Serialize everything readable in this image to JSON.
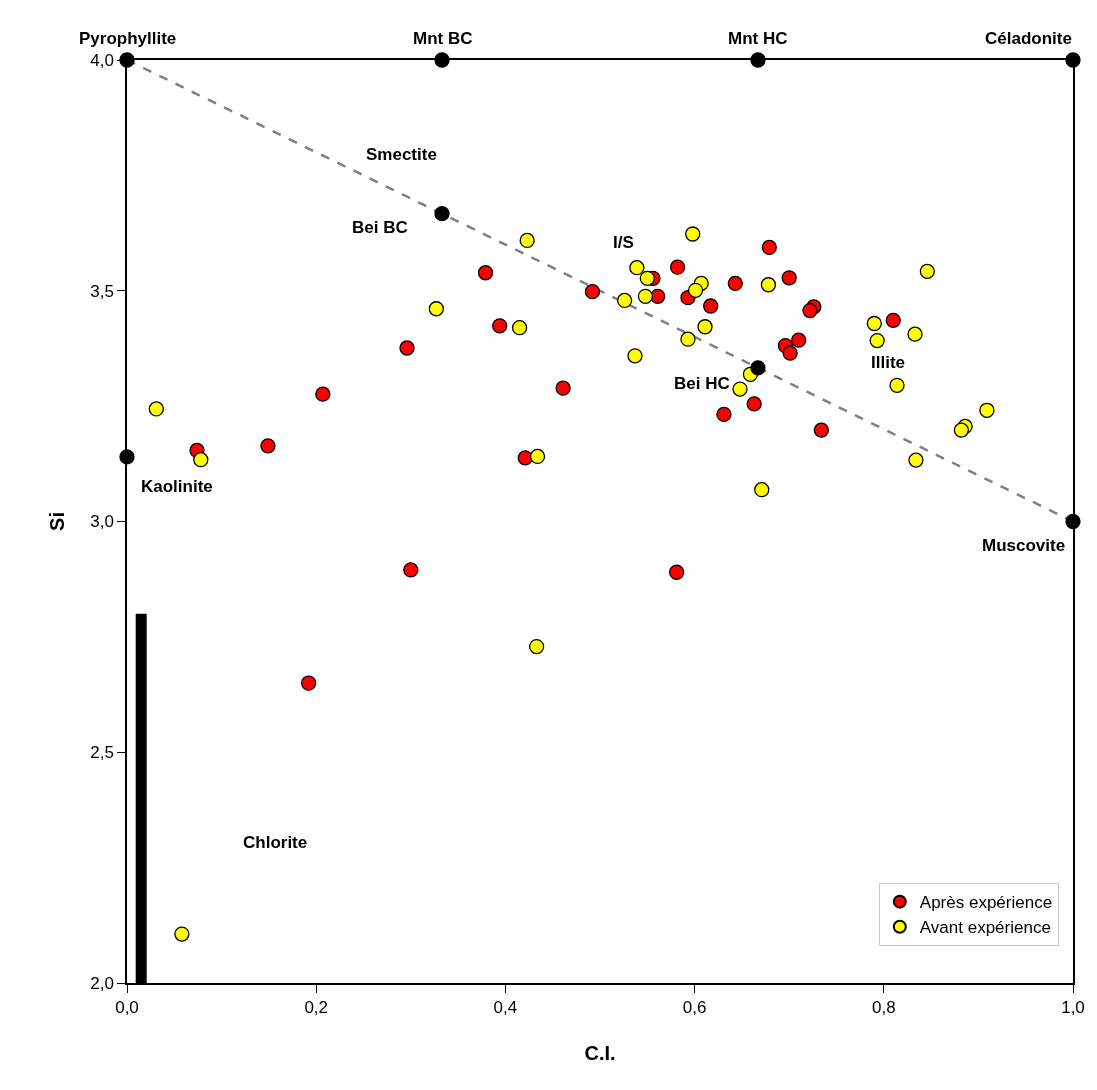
{
  "chart_data": {
    "type": "scatter",
    "xlabel": "C.I.",
    "ylabel": "Si",
    "xlim": [
      0,
      1
    ],
    "ylim": [
      2,
      4
    ],
    "xticks": [
      {
        "value": 0,
        "label": "0,0"
      },
      {
        "value": 0.2,
        "label": "0,2"
      },
      {
        "value": 0.4,
        "label": "0,4"
      },
      {
        "value": 0.6,
        "label": "0,6"
      },
      {
        "value": 0.8,
        "label": "0,8"
      },
      {
        "value": 1,
        "label": "1,0"
      }
    ],
    "yticks": [
      {
        "value": 2,
        "label": "2,0"
      },
      {
        "value": 2.5,
        "label": "2,5"
      },
      {
        "value": 3,
        "label": "3,0"
      },
      {
        "value": 3.5,
        "label": "3,5"
      },
      {
        "value": 4,
        "label": "4,0"
      }
    ],
    "grid": false,
    "legend": "bottom right",
    "marker": "circle",
    "series": [
      {
        "type": "line",
        "color": "#808080",
        "line_style": "dashed",
        "marker": "none",
        "x": [
          0,
          1
        ],
        "values": [
          4,
          3
        ]
      },
      {
        "type": "line",
        "color": "#000000",
        "line_style": "solid",
        "marker": "none",
        "x": [
          0.015,
          0.015
        ],
        "values": [
          2.0,
          2.8
        ]
      },
      {
        "name": "Après expérience",
        "color": "#ff0000",
        "x": [
          0.379,
          0.492,
          0.394,
          0.296,
          0.461,
          0.207,
          0.074,
          0.149,
          0.421,
          0.3,
          0.192,
          0.581,
          0.679,
          0.582,
          0.556,
          0.7,
          0.643,
          0.561,
          0.593,
          0.617,
          0.726,
          0.722,
          0.81,
          0.71,
          0.696,
          0.701,
          0.663,
          0.631,
          0.734
        ],
        "values": [
          3.539,
          3.498,
          3.424,
          3.376,
          3.289,
          3.276,
          3.154,
          3.164,
          3.138,
          2.895,
          2.65,
          2.89,
          3.594,
          3.551,
          3.527,
          3.528,
          3.516,
          3.488,
          3.485,
          3.467,
          3.465,
          3.457,
          3.436,
          3.393,
          3.381,
          3.365,
          3.255,
          3.232,
          3.198
        ]
      },
      {
        "name": "Avant expérience",
        "color": "#ffff00",
        "x": [
          0.423,
          0.327,
          0.415,
          0.031,
          0.078,
          0.434,
          0.058,
          0.433,
          0.598,
          0.539,
          0.55,
          0.607,
          0.678,
          0.601,
          0.548,
          0.526,
          0.846,
          0.611,
          0.79,
          0.833,
          0.793,
          0.593,
          0.537,
          0.659,
          0.648,
          0.814,
          0.909,
          0.886,
          0.882,
          0.834,
          0.671
        ],
        "values": [
          3.609,
          3.461,
          3.42,
          3.244,
          3.134,
          3.141,
          2.106,
          2.729,
          3.623,
          3.55,
          3.527,
          3.516,
          3.513,
          3.501,
          3.488,
          3.479,
          3.542,
          3.422,
          3.429,
          3.406,
          3.392,
          3.395,
          3.359,
          3.319,
          3.287,
          3.295,
          3.241,
          3.206,
          3.198,
          3.133,
          3.069
        ]
      },
      {
        "color": "#000000",
        "x": [
          0,
          0.333,
          0.667,
          1,
          0.333,
          0.667,
          0,
          1
        ],
        "values": [
          4,
          4,
          4,
          4,
          3.667,
          3.333,
          3.14,
          3.0
        ]
      }
    ],
    "annotations": [
      {
        "text": "Pyrophyllite",
        "x": 0,
        "y": 4
      },
      {
        "text": "Mnt BC",
        "x": 0.333,
        "y": 4
      },
      {
        "text": "Mnt HC",
        "x": 0.667,
        "y": 4
      },
      {
        "text": "Céladonite",
        "x": 1,
        "y": 4
      },
      {
        "text": "Bei BC",
        "x": 0.333,
        "y": 3.667
      },
      {
        "text": "Bei HC",
        "x": 0.667,
        "y": 3.333
      },
      {
        "text": "Kaolinite",
        "x": 0,
        "y": 3.14
      },
      {
        "text": "Muscovite",
        "x": 1,
        "y": 3.0
      },
      "Smectite",
      "I/S",
      "Illite",
      "Chlorite"
    ]
  }
}
